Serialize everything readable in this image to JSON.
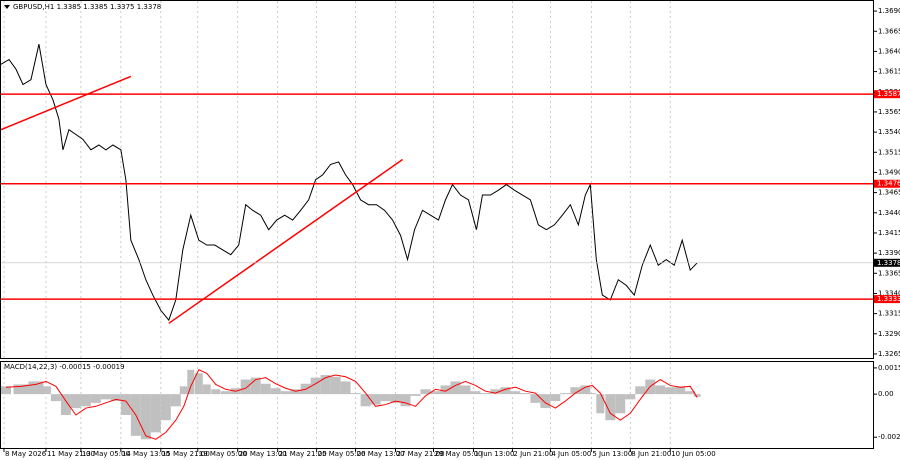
{
  "chart_data": [
    {
      "type": "line",
      "title": "GBPUSD,H1 1.3385 1.3385 1.3375 1.3378",
      "xlim": [
        0,
        873
      ],
      "xticks": [
        {
          "value": 3,
          "label": "8 May 2026"
        },
        {
          "value": 45,
          "label": "11 May 21:00"
        },
        {
          "value": 80,
          "label": "13 May 05:00"
        },
        {
          "value": 120,
          "label": "14 May 13:00"
        },
        {
          "value": 160,
          "label": "15 May 21:00"
        },
        {
          "value": 197,
          "label": "19 May 05:00"
        },
        {
          "value": 237,
          "label": "20 May 13:00"
        },
        {
          "value": 277,
          "label": "21 May 21:00"
        },
        {
          "value": 316,
          "label": "25 May 05:00"
        },
        {
          "value": 355,
          "label": "26 May 13:00"
        },
        {
          "value": 395,
          "label": "27 May 21:00"
        },
        {
          "value": 433,
          "label": "29 May 05:00"
        },
        {
          "value": 473,
          "label": "1 Jun 13:00"
        },
        {
          "value": 512,
          "label": "2 Jun 21:00"
        },
        {
          "value": 550,
          "label": "4 Jun 05:00"
        },
        {
          "value": 591,
          "label": "5 Jun 13:00"
        },
        {
          "value": 630,
          "label": "8 Jun 21:00"
        },
        {
          "value": 670,
          "label": "10 Jun 05:00"
        }
      ],
      "ylim": [
        1.326,
        1.37025
      ],
      "yticks": [
        {
          "value": 1.369,
          "label": "1.3690"
        },
        1.3665,
        {
          "value": 1.364,
          "label": "1.3640"
        },
        1.3615,
        {
          "value": 1.359,
          "label": "1.3590"
        },
        1.3565,
        {
          "value": 1.354,
          "label": "1.3540"
        },
        1.3515,
        {
          "value": 1.349,
          "label": "1.3490"
        },
        1.3465,
        {
          "value": 1.344,
          "label": "1.3440"
        },
        1.3415,
        {
          "value": 1.339,
          "label": "1.3390"
        },
        1.3365,
        {
          "value": 1.334,
          "label": "1.3340"
        },
        1.3315,
        {
          "value": 1.329,
          "label": "1.3290"
        },
        1.3265
      ],
      "grid": true,
      "color": "#000000",
      "x": [
        0,
        8,
        15,
        22,
        30,
        38,
        45,
        52,
        58,
        62,
        68,
        75,
        82,
        90,
        98,
        105,
        112,
        120,
        125,
        130,
        138,
        145,
        152,
        160,
        168,
        175,
        182,
        190,
        198,
        206,
        214,
        222,
        230,
        238,
        245,
        252,
        260,
        268,
        276,
        284,
        292,
        300,
        308,
        315,
        322,
        330,
        338,
        345,
        352,
        360,
        368,
        376,
        384,
        392,
        400,
        407,
        414,
        422,
        430,
        438,
        445,
        452,
        460,
        468,
        476,
        482,
        490,
        498,
        506,
        514,
        522,
        530,
        538,
        546,
        554,
        562,
        570,
        578,
        585,
        590,
        596,
        602,
        610,
        618,
        626,
        634,
        642,
        650,
        658,
        666,
        674,
        682,
        690,
        697
      ],
      "values": [
        1.3624,
        1.363,
        1.3618,
        1.3599,
        1.3605,
        1.3649,
        1.3599,
        1.358,
        1.3556,
        1.3518,
        1.3543,
        1.3537,
        1.3531,
        1.3518,
        1.3524,
        1.3518,
        1.3524,
        1.3518,
        1.3481,
        1.3406,
        1.3382,
        1.3357,
        1.3338,
        1.3319,
        1.3307,
        1.3332,
        1.3394,
        1.3437,
        1.3406,
        1.34,
        1.34,
        1.3394,
        1.3388,
        1.34,
        1.345,
        1.3443,
        1.3437,
        1.3419,
        1.3431,
        1.3437,
        1.3431,
        1.3443,
        1.3456,
        1.3481,
        1.3487,
        1.35,
        1.3503,
        1.3487,
        1.3475,
        1.3456,
        1.345,
        1.345,
        1.3443,
        1.3431,
        1.3412,
        1.3382,
        1.3419,
        1.3443,
        1.3437,
        1.3431,
        1.3456,
        1.3475,
        1.3462,
        1.3456,
        1.3419,
        1.3462,
        1.3462,
        1.3468,
        1.3475,
        1.3468,
        1.3462,
        1.3456,
        1.3425,
        1.3419,
        1.3425,
        1.3437,
        1.345,
        1.3425,
        1.3462,
        1.3475,
        1.3382,
        1.3338,
        1.3332,
        1.3357,
        1.335,
        1.3338,
        1.3375,
        1.34,
        1.3375,
        1.3382,
        1.3375,
        1.3406,
        1.3369,
        1.3378
      ],
      "levels": [
        1.3587,
        1.3476,
        1.3333
      ],
      "level_color": "#ff0000",
      "current": 1.3378,
      "trendlines": [
        {
          "x": [
            0,
            130
          ],
          "y": [
            1.3543,
            1.3609
          ]
        },
        {
          "x": [
            168,
            402
          ],
          "y": [
            1.3303,
            1.3506
          ]
        }
      ]
    },
    {
      "type": "bar",
      "title": "MACD(14,22,3) -0.00015 -0.00019",
      "xlim": [
        0,
        873
      ],
      "ylim": [
        -0.0031,
        0.00185
      ],
      "yticks": [
        0.00151,
        {
          "value": 0,
          "label": "0.00"
        },
        -0.00248
      ],
      "color": "#c0c0c0",
      "x": [
        5,
        20,
        35,
        45,
        55,
        65,
        75,
        85,
        95,
        105,
        115,
        125,
        135,
        145,
        155,
        165,
        175,
        183,
        190,
        198,
        206,
        215,
        225,
        235,
        245,
        255,
        265,
        275,
        285,
        295,
        305,
        315,
        325,
        335,
        345,
        355,
        365,
        375,
        385,
        395,
        405,
        415,
        425,
        435,
        445,
        455,
        465,
        475,
        485,
        495,
        505,
        515,
        525,
        535,
        545,
        555,
        565,
        575,
        585,
        592,
        600,
        610,
        620,
        630,
        640,
        650,
        660,
        670,
        680,
        690,
        697
      ],
      "values": [
        0.00045,
        0.00056,
        0.00073,
        0.00045,
        -0.0004,
        -0.0012,
        -0.0008,
        -0.0007,
        -0.0005,
        -0.0003,
        -0.0004,
        -0.0012,
        -0.0024,
        -0.0026,
        -0.0022,
        -0.0015,
        -0.0007,
        0.00045,
        0.0014,
        0.0012,
        0.00056,
        0.00028,
        0.00017,
        0.00034,
        0.00084,
        0.00095,
        0.0006,
        0.00034,
        0.00017,
        0.00028,
        0.0006,
        0.00095,
        0.0011,
        0.001,
        0.00073,
        6e-05,
        -0.0007,
        -0.0006,
        -0.0004,
        -0.0005,
        -0.0007,
        -0.0001,
        0.00028,
        0.00017,
        0.0005,
        0.00073,
        0.0005,
        0.00017,
        6e-05,
        0.00028,
        0.0004,
        0.00017,
        6e-05,
        -0.0005,
        -0.0008,
        -0.0004,
        6e-05,
        0.0004,
        0.0005,
        6e-05,
        -0.0011,
        -0.0015,
        -0.0011,
        -0.0003,
        0.00045,
        0.00084,
        0.0005,
        0.0004,
        0.00045,
        0.00017,
        -0.00015
      ],
      "signal": {
        "color": "#ff0000",
        "values": [
          0.0004,
          0.00045,
          0.00056,
          0.00073,
          0.00045,
          -0.0004,
          -0.0012,
          -0.0008,
          -0.0007,
          -0.0005,
          -0.0003,
          -0.0004,
          -0.0012,
          -0.0024,
          -0.0026,
          -0.0022,
          -0.0015,
          -0.0007,
          0.00045,
          0.0014,
          0.0012,
          0.00056,
          0.00028,
          0.00017,
          0.00034,
          0.00084,
          0.00095,
          0.0006,
          0.00034,
          0.00017,
          0.00028,
          0.0006,
          0.00095,
          0.0011,
          0.001,
          0.00073,
          6e-05,
          -0.0007,
          -0.0006,
          -0.0004,
          -0.0005,
          -0.0007,
          -0.0001,
          0.00028,
          0.00017,
          0.0005,
          0.00073,
          0.0005,
          0.00017,
          6e-05,
          0.00028,
          0.0004,
          0.00017,
          6e-05,
          -0.0005,
          -0.0008,
          -0.0004,
          6e-05,
          0.0004,
          0.0005,
          6e-05,
          -0.0011,
          -0.0015,
          -0.0011,
          -0.0003,
          0.00045,
          0.00084,
          0.0005,
          0.0004,
          0.00045,
          -0.00019
        ]
      }
    }
  ]
}
